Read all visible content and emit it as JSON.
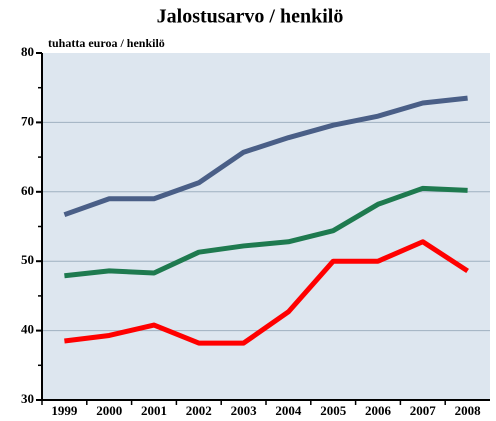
{
  "chart_data": {
    "type": "line",
    "title": "Jalostusarvo / henkilö",
    "y_axis_label": "tuhatta euroa / henkilö",
    "categories": [
      "1999",
      "2000",
      "2001",
      "2002",
      "2003",
      "2004",
      "2005",
      "2006",
      "2007",
      "2008"
    ],
    "series": [
      {
        "color": "#4a5f87",
        "values": [
          56.7,
          59,
          59,
          61.3,
          65.7,
          67.8,
          69.6,
          70.9,
          72.8,
          73.5
        ]
      },
      {
        "color": "#1e7a4f",
        "values": [
          47.9,
          48.6,
          48.3,
          51.3,
          52.2,
          52.8,
          54.4,
          58.2,
          60.5,
          60.2
        ]
      },
      {
        "color": "#ff0000",
        "values": [
          38.5,
          39.3,
          40.8,
          38.2,
          38.2,
          42.7,
          50,
          50,
          52.8,
          48.6
        ]
      }
    ],
    "ylim": [
      30,
      80
    ],
    "yticks": [
      30,
      40,
      50,
      60,
      70,
      80
    ],
    "grid": true,
    "background": "#dde6ef"
  }
}
